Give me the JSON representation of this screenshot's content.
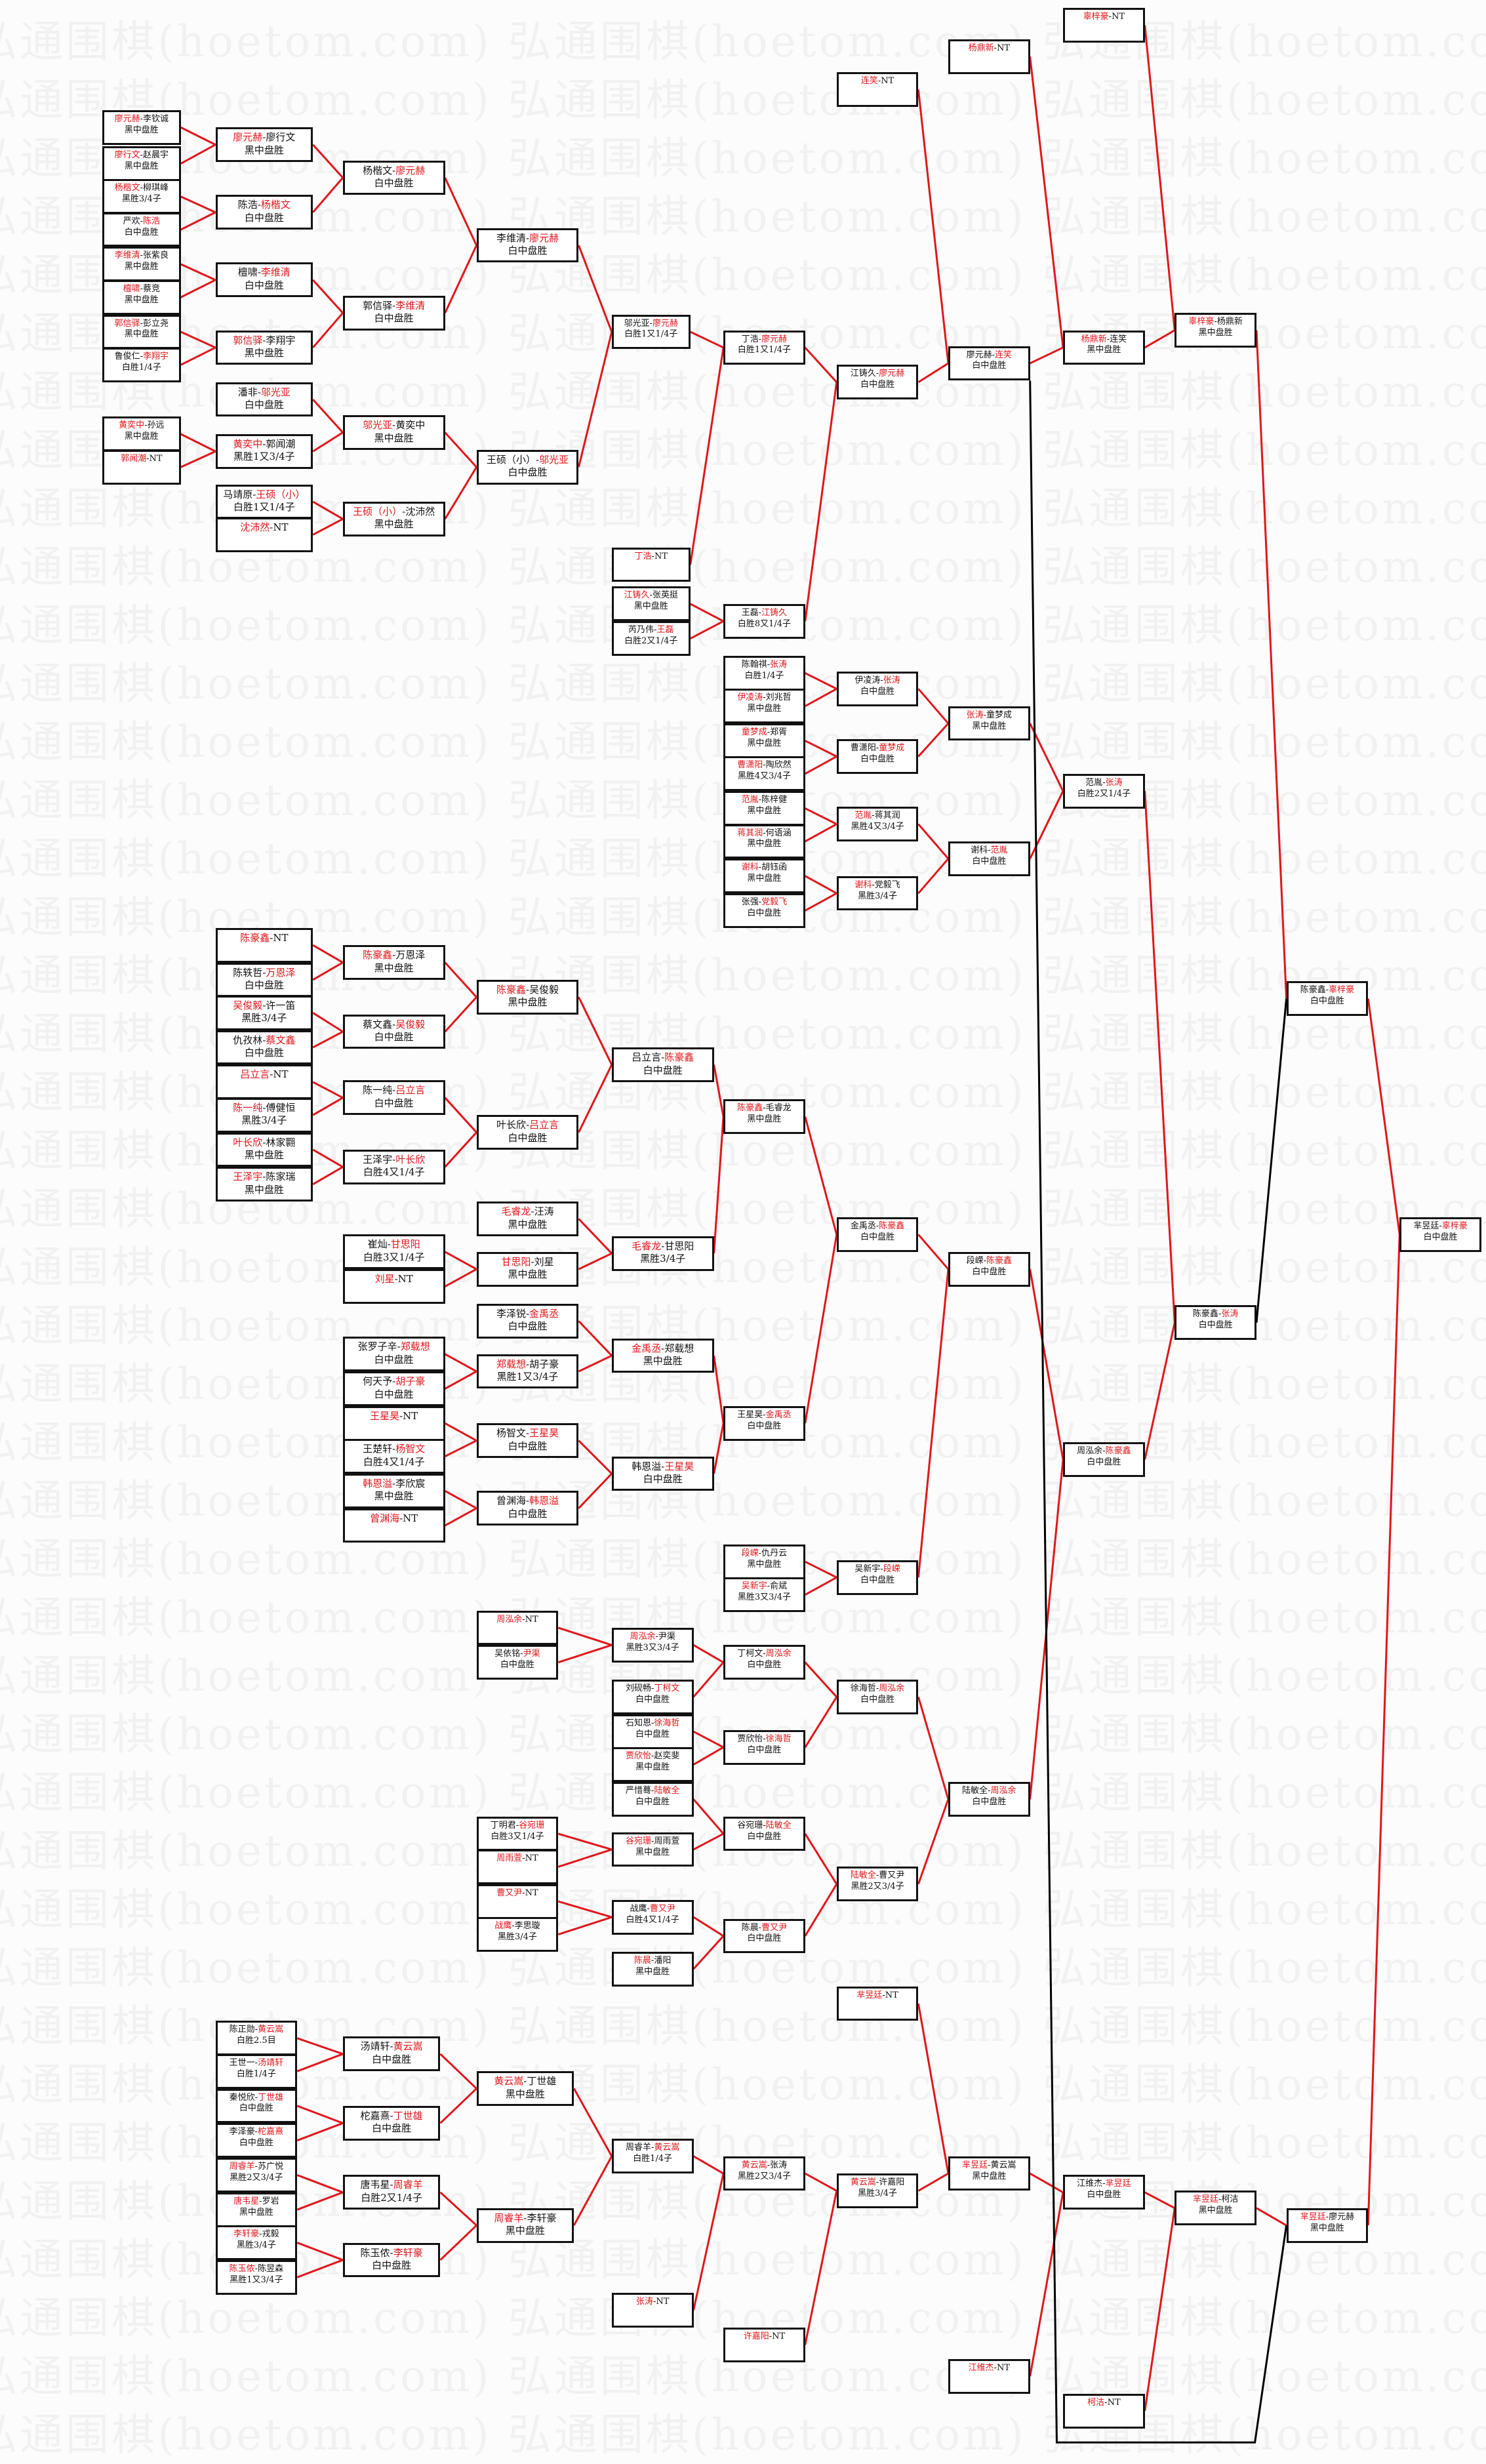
{
  "watermark": "弘通围棋(hoetom.com)",
  "colors": {
    "winner": "#e0161b",
    "line_win": "#e0161b",
    "line_loser": "#000000",
    "border": "#111111"
  },
  "sep": "-",
  "matches": {
    "a1": {
      "p1": "廖元赫",
      "p2": "李钦诚",
      "w": 1,
      "r": "黑中盘胜"
    },
    "a2": {
      "p1": "廖行文",
      "p2": "赵晨宇",
      "w": 1,
      "r": "黑中盘胜"
    },
    "a3": {
      "p1": "杨楷文",
      "p2": "柳琪峰",
      "w": 1,
      "r": "黑胜3/4子"
    },
    "a4": {
      "p1": "严欢",
      "p2": "陈浩",
      "w": 2,
      "r": "白中盘胜"
    },
    "a5": {
      "p1": "李维清",
      "p2": "张紫良",
      "w": 1,
      "r": "黑中盘胜"
    },
    "a6": {
      "p1": "檀啸",
      "p2": "蔡竞",
      "w": 1,
      "r": "黑中盘胜"
    },
    "a7": {
      "p1": "郭信驿",
      "p2": "彭立尧",
      "w": 1,
      "r": "黑中盘胜"
    },
    "a8": {
      "p1": "鲁俊仁",
      "p2": "李翔宇",
      "w": 2,
      "r": "白胜1/4子"
    },
    "a9": {
      "p1": "黄奕中",
      "p2": "孙远",
      "w": 1,
      "r": "黑中盘胜"
    },
    "a10": {
      "p1": "郭闻潮",
      "p2": "NT",
      "w": 1,
      "r": ""
    },
    "b1": {
      "p1": "廖元赫",
      "p2": "廖行文",
      "w": 1,
      "r": "黑中盘胜"
    },
    "b2": {
      "p1": "陈浩",
      "p2": "杨楷文",
      "w": 2,
      "r": "白中盘胜"
    },
    "b3": {
      "p1": "檀啸",
      "p2": "李维清",
      "w": 2,
      "r": "白中盘胜"
    },
    "b4": {
      "p1": "郭信驿",
      "p2": "李翔宇",
      "w": 1,
      "r": "黑中盘胜"
    },
    "b5": {
      "p1": "潘非",
      "p2": "邬光亚",
      "w": 2,
      "r": "白中盘胜"
    },
    "b6": {
      "p1": "黄奕中",
      "p2": "郭闻潮",
      "w": 1,
      "r": "黑胜1又3/4子"
    },
    "b7": {
      "p1": "马靖原",
      "p2": "王硕（小）",
      "w": 2,
      "r": "白胜1又1/4子"
    },
    "b8": {
      "p1": "沈沛然",
      "p2": "NT",
      "w": 1,
      "r": ""
    },
    "c1": {
      "p1": "杨楷文",
      "p2": "廖元赫",
      "w": 2,
      "r": "白中盘胜"
    },
    "c2": {
      "p1": "郭信驿",
      "p2": "李维清",
      "w": 2,
      "r": "白中盘胜"
    },
    "c3": {
      "p1": "邬光亚",
      "p2": "黄奕中",
      "w": 1,
      "r": "黑中盘胜"
    },
    "c4": {
      "p1": "王硕（小）",
      "p2": "沈沛然",
      "w": 1,
      "r": "黑中盘胜"
    },
    "d1": {
      "p1": "李维清",
      "p2": "廖元赫",
      "w": 2,
      "r": "白中盘胜"
    },
    "d2": {
      "p1": "王硕（小）",
      "p2": "邬光亚",
      "w": 2,
      "r": "白中盘胜"
    },
    "e1": {
      "p1": "邬光亚",
      "p2": "廖元赫",
      "w": 2,
      "r": "白胜1又1/4子"
    },
    "e2": {
      "p1": "丁浩",
      "p2": "NT",
      "w": 1,
      "r": ""
    },
    "e3": {
      "p1": "江铸久",
      "p2": "张英挺",
      "w": 1,
      "r": "黑中盘胜"
    },
    "e4": {
      "p1": "芮乃伟",
      "p2": "王磊",
      "w": 2,
      "r": "白胜2又1/4子"
    },
    "f1": {
      "p1": "丁浩",
      "p2": "廖元赫",
      "w": 2,
      "r": "白胜1又1/4子"
    },
    "f2": {
      "p1": "王磊",
      "p2": "江铸久",
      "w": 2,
      "r": "白胜8又1/4子"
    },
    "g0": {
      "p1": "连笑",
      "p2": "NT",
      "w": 1,
      "r": ""
    },
    "g1": {
      "p1": "江铸久",
      "p2": "廖元赫",
      "w": 2,
      "r": "白中盘胜"
    },
    "h0": {
      "p1": "杨鼎新",
      "p2": "NT",
      "w": 1,
      "r": ""
    },
    "h1": {
      "p1": "廖元赫",
      "p2": "连笑",
      "w": 2,
      "r": "白中盘胜"
    },
    "i0": {
      "p1": "辜梓豪",
      "p2": "NT",
      "w": 1,
      "r": ""
    },
    "i1": {
      "p1": "杨鼎新",
      "p2": "连笑",
      "w": 1,
      "r": "黑中盘胜"
    },
    "j1": {
      "p1": "辜梓豪",
      "p2": "杨鼎新",
      "w": 1,
      "r": "黑中盘胜"
    },
    "k1": {
      "p1": "陈翰祺",
      "p2": "张涛",
      "w": 2,
      "r": "白胜1/4子"
    },
    "k2": {
      "p1": "伊凌涛",
      "p2": "刘兆哲",
      "w": 1,
      "r": "黑中盘胜"
    },
    "k3": {
      "p1": "童梦成",
      "p2": "郑胥",
      "w": 1,
      "r": "黑中盘胜"
    },
    "k4": {
      "p1": "曹潇阳",
      "p2": "陶欣然",
      "w": 1,
      "r": "黑胜4又3/4子"
    },
    "k5": {
      "p1": "范胤",
      "p2": "陈梓健",
      "w": 1,
      "r": "黑中盘胜"
    },
    "k6": {
      "p1": "蒋其润",
      "p2": "何语涵",
      "w": 1,
      "r": "黑中盘胜"
    },
    "k7": {
      "p1": "谢科",
      "p2": "胡钰函",
      "w": 1,
      "r": "黑中盘胜"
    },
    "k8": {
      "p1": "张强",
      "p2": "党毅飞",
      "w": 2,
      "r": "白中盘胜"
    },
    "l1": {
      "p1": "伊凌涛",
      "p2": "张涛",
      "w": 2,
      "r": "白中盘胜"
    },
    "l2": {
      "p1": "曹潇阳",
      "p2": "童梦成",
      "w": 2,
      "r": "白中盘胜"
    },
    "l3": {
      "p1": "范胤",
      "p2": "蒋其润",
      "w": 1,
      "r": "黑胜4又3/4子"
    },
    "l4": {
      "p1": "谢科",
      "p2": "党毅飞",
      "w": 1,
      "r": "黑胜3/4子"
    },
    "m1": {
      "p1": "张涛",
      "p2": "童梦成",
      "w": 1,
      "r": "黑中盘胜"
    },
    "m2": {
      "p1": "谢科",
      "p2": "范胤",
      "w": 2,
      "r": "白中盘胜"
    },
    "n1": {
      "p1": "范胤",
      "p2": "张涛",
      "w": 2,
      "r": "白胜2又1/4子"
    },
    "o1": {
      "p1": "陈豪鑫",
      "p2": "NT",
      "w": 1,
      "r": ""
    },
    "o2": {
      "p1": "陈轶哲",
      "p2": "万恩泽",
      "w": 2,
      "r": "白中盘胜"
    },
    "o3": {
      "p1": "吴俊毅",
      "p2": "许一笛",
      "w": 1,
      "r": "黑胜3/4子"
    },
    "o4": {
      "p1": "仇孜林",
      "p2": "蔡文鑫",
      "w": 2,
      "r": "白中盘胜"
    },
    "o5": {
      "p1": "吕立言",
      "p2": "NT",
      "w": 1,
      "r": ""
    },
    "o6": {
      "p1": "陈一纯",
      "p2": "傅健恒",
      "w": 1,
      "r": "黑胜3/4子"
    },
    "o7": {
      "p1": "叶长欣",
      "p2": "林家翾",
      "w": 1,
      "r": "黑中盘胜"
    },
    "o8": {
      "p1": "王泽宇",
      "p2": "陈家瑞",
      "w": 1,
      "r": "黑中盘胜"
    },
    "p1": {
      "p1": "陈豪鑫",
      "p2": "万恩泽",
      "w": 1,
      "r": "黑中盘胜"
    },
    "p2": {
      "p1": "蔡文鑫",
      "p2": "吴俊毅",
      "w": 2,
      "r": "白中盘胜"
    },
    "p3": {
      "p1": "陈一纯",
      "p2": "吕立言",
      "w": 2,
      "r": "白中盘胜"
    },
    "p4": {
      "p1": "王泽宇",
      "p2": "叶长欣",
      "w": 2,
      "r": "白胜4又1/4子"
    },
    "p5": {
      "p1": "崔灿",
      "p2": "甘思阳",
      "w": 2,
      "r": "白胜3又1/4子"
    },
    "p6": {
      "p1": "刘星",
      "p2": "NT",
      "w": 1,
      "r": ""
    },
    "p7": {
      "p1": "张罗子辛",
      "p2": "郑载想",
      "w": 2,
      "r": "白中盘胜"
    },
    "p8": {
      "p1": "何天予",
      "p2": "胡子豪",
      "w": 2,
      "r": "白中盘胜"
    },
    "p9": {
      "p1": "王星昊",
      "p2": "NT",
      "w": 1,
      "r": ""
    },
    "p10": {
      "p1": "王楚轩",
      "p2": "杨智文",
      "w": 2,
      "r": "白胜4又1/4子"
    },
    "p11": {
      "p1": "韩恩溢",
      "p2": "李欣宸",
      "w": 1,
      "r": "黑中盘胜"
    },
    "p12": {
      "p1": "曾渊海",
      "p2": "NT",
      "w": 1,
      "r": ""
    },
    "q1": {
      "p1": "陈豪鑫",
      "p2": "吴俊毅",
      "w": 1,
      "r": "黑中盘胜"
    },
    "q2": {
      "p1": "叶长欣",
      "p2": "吕立言",
      "w": 2,
      "r": "白中盘胜"
    },
    "q3": {
      "p1": "毛睿龙",
      "p2": "汪涛",
      "w": 1,
      "r": "黑中盘胜"
    },
    "q4": {
      "p1": "甘思阳",
      "p2": "刘星",
      "w": 1,
      "r": "黑中盘胜"
    },
    "q5": {
      "p1": "李泽锐",
      "p2": "金禹丞",
      "w": 2,
      "r": "白中盘胜"
    },
    "q6": {
      "p1": "郑载想",
      "p2": "胡子豪",
      "w": 1,
      "r": "黑胜1又3/4子"
    },
    "q7": {
      "p1": "杨智文",
      "p2": "王星昊",
      "w": 2,
      "r": "白中盘胜"
    },
    "q8": {
      "p1": "曾渊海",
      "p2": "韩恩溢",
      "w": 2,
      "r": "白中盘胜"
    },
    "r1": {
      "p1": "吕立言",
      "p2": "陈豪鑫",
      "w": 2,
      "r": "白中盘胜"
    },
    "r2": {
      "p1": "毛睿龙",
      "p2": "甘思阳",
      "w": 1,
      "r": "黑胜3/4子"
    },
    "r3": {
      "p1": "金禹丞",
      "p2": "郑载想",
      "w": 1,
      "r": "黑中盘胜"
    },
    "r4": {
      "p1": "韩恩溢",
      "p2": "王星昊",
      "w": 2,
      "r": "白中盘胜"
    },
    "s1": {
      "p1": "陈豪鑫",
      "p2": "毛睿龙",
      "w": 1,
      "r": "黑中盘胜"
    },
    "s2": {
      "p1": "王星昊",
      "p2": "金禹丞",
      "w": 2,
      "r": "白中盘胜"
    },
    "s3": {
      "p1": "段嵘",
      "p2": "仇丹云",
      "w": 1,
      "r": "黑中盘胜"
    },
    "s4": {
      "p1": "吴新宇",
      "p2": "俞斌",
      "w": 1,
      "r": "黑胜3又3/4子"
    },
    "t1": {
      "p1": "金禹丞",
      "p2": "陈豪鑫",
      "w": 2,
      "r": "白中盘胜"
    },
    "t2": {
      "p1": "吴新宇",
      "p2": "段嵘",
      "w": 2,
      "r": "白中盘胜"
    },
    "u1": {
      "p1": "段嵘",
      "p2": "陈豪鑫",
      "w": 2,
      "r": "白中盘胜"
    },
    "v1": {
      "p1": "周泓余",
      "p2": "NT",
      "w": 1,
      "r": ""
    },
    "v2": {
      "p1": "吴依铭",
      "p2": "尹渠",
      "w": 2,
      "r": "白中盘胜"
    },
    "v3": {
      "p1": "丁明君",
      "p2": "谷宛珊",
      "w": 2,
      "r": "白胜3又1/4子"
    },
    "v4": {
      "p1": "周雨萱",
      "p2": "NT",
      "w": 1,
      "r": ""
    },
    "v5": {
      "p1": "曹又尹",
      "p2": "NT",
      "w": 1,
      "r": ""
    },
    "v6": {
      "p1": "战鹰",
      "p2": "李思璇",
      "w": 1,
      "r": "黑胜3/4子"
    },
    "w1": {
      "p1": "周泓余",
      "p2": "尹渠",
      "w": 1,
      "r": "黑胜3又3/4子"
    },
    "w2": {
      "p1": "刘砚畅",
      "p2": "丁柯文",
      "w": 2,
      "r": "白中盘胜"
    },
    "w3": {
      "p1": "石知恩",
      "p2": "徐海哲",
      "w": 2,
      "r": "白中盘胜"
    },
    "w4": {
      "p1": "贾欣怡",
      "p2": "赵奕斐",
      "w": 1,
      "r": "黑中盘胜"
    },
    "w5": {
      "p1": "严惜蓦",
      "p2": "陆敏全",
      "w": 2,
      "r": "白中盘胜"
    },
    "w6": {
      "p1": "谷宛珊",
      "p2": "周雨萱",
      "w": 1,
      "r": "黑中盘胜"
    },
    "w7": {
      "p1": "战鹰",
      "p2": "曹又尹",
      "w": 2,
      "r": "白胜4又1/4子"
    },
    "w8": {
      "p1": "陈晨",
      "p2": "潘阳",
      "w": 1,
      "r": "黑中盘胜"
    },
    "x1": {
      "p1": "丁柯文",
      "p2": "周泓余",
      "w": 2,
      "r": "白中盘胜"
    },
    "x2": {
      "p1": "贾欣怡",
      "p2": "徐海哲",
      "w": 2,
      "r": "白中盘胜"
    },
    "x3": {
      "p1": "谷宛珊",
      "p2": "陆敏全",
      "w": 2,
      "r": "白中盘胜"
    },
    "x4": {
      "p1": "陈晨",
      "p2": "曹又尹",
      "w": 2,
      "r": "白中盘胜"
    },
    "y1": {
      "p1": "徐海哲",
      "p2": "周泓余",
      "w": 2,
      "r": "白中盘胜"
    },
    "y2": {
      "p1": "陆敏全",
      "p2": "曹又尹",
      "w": 1,
      "r": "黑胜2又3/4子"
    },
    "z1": {
      "p1": "陆敏全",
      "p2": "周泓余",
      "w": 2,
      "r": "白中盘胜"
    },
    "zz": {
      "p1": "周泓余",
      "p2": "陈豪鑫",
      "w": 2,
      "r": "白中盘胜"
    },
    "ch": {
      "p1": "陈豪鑫",
      "p2": "张涛",
      "w": 2,
      "r": "白中盘胜"
    },
    "cg": {
      "p1": "陈豪鑫",
      "p2": "辜梓豪",
      "w": 2,
      "r": "白中盘胜"
    },
    "fin": {
      "p1": "芈昱廷",
      "p2": "辜梓豪",
      "w": 2,
      "r": "白中盘胜"
    },
    "B1": {
      "p1": "陈正勋",
      "p2": "黄云嵩",
      "w": 2,
      "r": "白胜2.5目"
    },
    "B2": {
      "p1": "王世一",
      "p2": "汤靖轩",
      "w": 2,
      "r": "白胜1/4子"
    },
    "B3": {
      "p1": "秦悦欣",
      "p2": "丁世雄",
      "w": 2,
      "r": "白中盘胜"
    },
    "B4": {
      "p1": "李泽豪",
      "p2": "柁嘉熹",
      "w": 2,
      "r": "白中盘胜"
    },
    "B5": {
      "p1": "周睿羊",
      "p2": "苏广悦",
      "w": 1,
      "r": "黑胜2又3/4子"
    },
    "B6": {
      "p1": "唐韦星",
      "p2": "罗岩",
      "w": 1,
      "r": "黑中盘胜"
    },
    "B7": {
      "p1": "李轩豪",
      "p2": "戎毅",
      "w": 1,
      "r": "黑胜3/4子"
    },
    "B8": {
      "p1": "陈玉侬",
      "p2": "陈昱森",
      "w": 1,
      "r": "黑胜1又3/4子"
    },
    "C1": {
      "p1": "汤靖轩",
      "p2": "黄云嵩",
      "w": 2,
      "r": "白中盘胜"
    },
    "C2": {
      "p1": "柁嘉熹",
      "p2": "丁世雄",
      "w": 2,
      "r": "白中盘胜"
    },
    "C3": {
      "p1": "唐韦星",
      "p2": "周睿羊",
      "w": 2,
      "r": "白胜2又1/4子"
    },
    "C4": {
      "p1": "陈玉侬",
      "p2": "李轩豪",
      "w": 2,
      "r": "白中盘胜"
    },
    "D1": {
      "p1": "黄云嵩",
      "p2": "丁世雄",
      "w": 1,
      "r": "黑中盘胜"
    },
    "D2": {
      "p1": "周睿羊",
      "p2": "李轩豪",
      "w": 1,
      "r": "黑中盘胜"
    },
    "E1": {
      "p1": "周睿羊",
      "p2": "黄云嵩",
      "w": 2,
      "r": "白胜1/4子"
    },
    "E2": {
      "p1": "张涛",
      "p2": "NT",
      "w": 1,
      "r": ""
    },
    "F1": {
      "p1": "黄云嵩",
      "p2": "张涛",
      "w": 1,
      "r": "黑胜2又3/4子"
    },
    "F2": {
      "p1": "许嘉阳",
      "p2": "NT",
      "w": 1,
      "r": ""
    },
    "G0": {
      "p1": "芈昱廷",
      "p2": "NT",
      "w": 1,
      "r": ""
    },
    "G1": {
      "p1": "黄云嵩",
      "p2": "许嘉阳",
      "w": 1,
      "r": "黑胜3/4子"
    },
    "H1": {
      "p1": "芈昱廷",
      "p2": "黄云嵩",
      "w": 1,
      "r": "黑中盘胜"
    },
    "H2": {
      "p1": "江维杰",
      "p2": "NT",
      "w": 1,
      "r": ""
    },
    "I1": {
      "p1": "江维杰",
      "p2": "芈昱廷",
      "w": 2,
      "r": "白中盘胜"
    },
    "I2": {
      "p1": "柯洁",
      "p2": "NT",
      "w": 1,
      "r": ""
    },
    "J1": {
      "p1": "芈昱廷",
      "p2": "柯洁",
      "w": 1,
      "r": "黑中盘胜"
    },
    "K1": {
      "p1": "芈昱廷",
      "p2": "廖元赫",
      "w": 1,
      "r": "黑中盘胜"
    }
  }
}
